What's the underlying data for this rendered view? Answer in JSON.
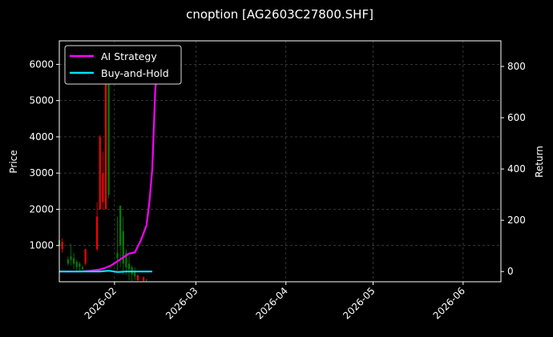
{
  "chart_data": {
    "type": "candlestick-with-returns",
    "title": "cnoption [AG2603C27800.SHF]",
    "ylabel_left": "Price",
    "ylabel_right": "Return",
    "left_yticks": [
      1000,
      2000,
      3000,
      4000,
      5000,
      6000
    ],
    "right_yticks": [
      0,
      200,
      400,
      600,
      800
    ],
    "ylim_left": [
      0,
      6650
    ],
    "ylim_right": [
      -40,
      900
    ],
    "xticks": [
      "2026-02",
      "2026-03",
      "2026-04",
      "2026-05",
      "2026-06"
    ],
    "xlim": [
      "2026-01-13",
      "2026-06-14"
    ],
    "grid": true,
    "legend_position": "top-left",
    "colors": {
      "up": "#008000",
      "down": "#ff0000",
      "ai": "#ff00ff",
      "bh": "#00e5ff",
      "background": "#000000",
      "grid": "#555555"
    },
    "candles": [
      {
        "date": "2026-01-13",
        "open": 1000,
        "close": 1150,
        "low": 850,
        "high": 1250
      },
      {
        "date": "2026-01-14",
        "open": 1100,
        "close": 900,
        "low": 800,
        "high": 1200
      },
      {
        "date": "2026-01-16",
        "open": 500,
        "close": 620,
        "low": 450,
        "high": 700
      },
      {
        "date": "2026-01-17",
        "open": 600,
        "close": 700,
        "low": 450,
        "high": 1050
      },
      {
        "date": "2026-01-18",
        "open": 500,
        "close": 650,
        "low": 350,
        "high": 800
      },
      {
        "date": "2026-01-19",
        "open": 400,
        "close": 550,
        "low": 300,
        "high": 600
      },
      {
        "date": "2026-01-20",
        "open": 420,
        "close": 500,
        "low": 300,
        "high": 550
      },
      {
        "date": "2026-01-21",
        "open": 350,
        "close": 400,
        "low": 300,
        "high": 450
      },
      {
        "date": "2026-01-22",
        "open": 900,
        "close": 500,
        "low": 450,
        "high": 900
      },
      {
        "date": "2026-01-26",
        "open": 1800,
        "close": 900,
        "low": 850,
        "high": 2200
      },
      {
        "date": "2026-01-27",
        "open": 4000,
        "close": 2000,
        "low": 2000,
        "high": 4050
      },
      {
        "date": "2026-01-28",
        "open": 3000,
        "close": 2200,
        "low": 2000,
        "high": 3600
      },
      {
        "date": "2026-01-29",
        "open": 6300,
        "close": 2000,
        "low": 2000,
        "high": 6300
      },
      {
        "date": "2026-01-30",
        "open": 2400,
        "close": 5700,
        "low": 2300,
        "high": 6500
      },
      {
        "date": "2026-02-02",
        "open": 650,
        "close": 800,
        "low": 300,
        "high": 1800
      },
      {
        "date": "2026-02-03",
        "open": 1000,
        "close": 2100,
        "low": 400,
        "high": 2100
      },
      {
        "date": "2026-02-04",
        "open": 500,
        "close": 1400,
        "low": 200,
        "high": 1800
      },
      {
        "date": "2026-02-05",
        "open": 400,
        "close": 800,
        "low": 200,
        "high": 900
      },
      {
        "date": "2026-02-06",
        "open": 350,
        "close": 500,
        "low": 50,
        "high": 700
      },
      {
        "date": "2026-02-07",
        "open": 200,
        "close": 400,
        "low": 20,
        "high": 450
      },
      {
        "date": "2026-02-08",
        "open": 150,
        "close": 300,
        "low": 40,
        "high": 400
      },
      {
        "date": "2026-02-09",
        "open": 180,
        "close": 50,
        "low": 20,
        "high": 200
      },
      {
        "date": "2026-02-11",
        "open": 120,
        "close": 30,
        "low": 10,
        "high": 150
      },
      {
        "date": "2026-02-12",
        "open": 40,
        "close": 60,
        "low": 10,
        "high": 70
      }
    ],
    "series": [
      {
        "name": "AI Strategy",
        "points": [
          [
            "2026-01-13",
            0
          ],
          [
            "2026-01-20",
            0
          ],
          [
            "2026-01-24",
            3
          ],
          [
            "2026-01-27",
            8
          ],
          [
            "2026-01-29",
            15
          ],
          [
            "2026-01-31",
            25
          ],
          [
            "2026-02-02",
            40
          ],
          [
            "2026-02-04",
            55
          ],
          [
            "2026-02-06",
            70
          ],
          [
            "2026-02-08",
            75
          ],
          [
            "2026-02-10",
            120
          ],
          [
            "2026-02-12",
            180
          ],
          [
            "2026-02-13",
            270
          ],
          [
            "2026-02-14",
            400
          ],
          [
            "2026-02-15",
            700
          ],
          [
            "2026-02-16",
            850
          ]
        ]
      },
      {
        "name": "Buy-and-Hold",
        "points": [
          [
            "2026-01-13",
            0
          ],
          [
            "2026-01-27",
            0
          ],
          [
            "2026-01-30",
            3
          ],
          [
            "2026-02-02",
            -2
          ],
          [
            "2026-02-05",
            0
          ],
          [
            "2026-02-14",
            0
          ]
        ]
      }
    ]
  }
}
